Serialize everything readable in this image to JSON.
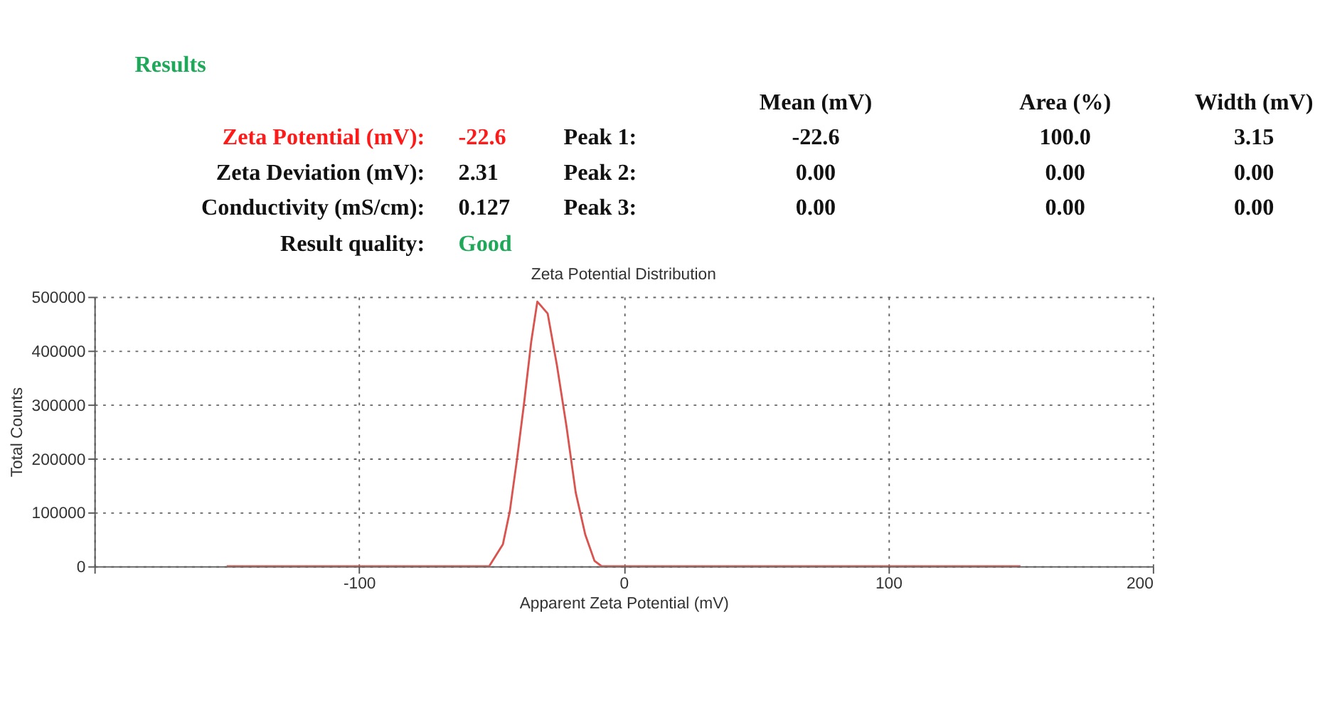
{
  "chart_data": {
    "type": "line",
    "title": "Zeta Potential Distribution",
    "xlabel": "Apparent Zeta Potential (mV)",
    "ylabel": "Total Counts",
    "annotations": [
      "Results",
      "Mean (mV)",
      "Area (%)",
      "Width (mV)",
      "Zeta Potential (mV):",
      "-22.6",
      "Peak 1:",
      "-22.6",
      "100.0",
      "3.15",
      "Zeta Deviation (mV):",
      "2.31",
      "Peak 2:",
      "0.00",
      "0.00",
      "0.00",
      "Conductivity (mS/cm):",
      "0.127",
      "Peak 3:",
      "0.00",
      "0.00",
      "0.00",
      "Result quality:",
      "Good"
    ],
    "series": [
      {
        "color": "#d9534f",
        "x": [
          -150,
          -50.8,
          -45.6,
          -43,
          -40.3,
          -37.6,
          -34.9,
          -32.6,
          -28.7,
          -25.2,
          -21.6,
          -18.1,
          -14.5,
          -11,
          -8.3,
          150
        ],
        "values": [
          0,
          0,
          41000,
          102000,
          198000,
          303000,
          417000,
          491000,
          469000,
          373000,
          260000,
          137000,
          59000,
          10000,
          0,
          0
        ]
      }
    ],
    "xlim": [
      -200,
      200
    ],
    "xticks": [
      {
        "value": -200,
        "label": null
      },
      -100,
      0,
      100,
      200
    ],
    "ylim": [
      0,
      500000
    ],
    "yticks": [
      0,
      100000,
      200000,
      300000,
      400000,
      500000
    ],
    "grid": true,
    "line_style": "solid",
    "marker": "none"
  }
}
